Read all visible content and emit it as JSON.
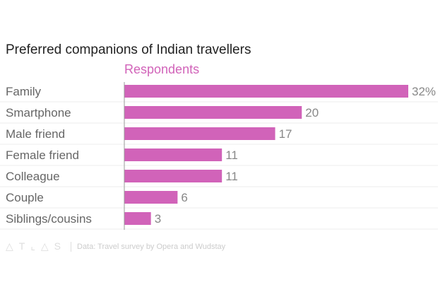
{
  "chart_data": {
    "type": "bar",
    "title": "Preferred companions of Indian travellers",
    "series_name": "Respondents",
    "categories": [
      "Family",
      "Smartphone",
      "Male friend",
      "Female friend",
      "Colleague",
      "Couple",
      "Siblings/cousins"
    ],
    "values": [
      32,
      20,
      17,
      11,
      11,
      6,
      3
    ],
    "value_labels": [
      "32%",
      "20",
      "17",
      "11",
      "11",
      "6",
      "3"
    ],
    "xlim": [
      0,
      32
    ],
    "bar_color": "#d163b9"
  },
  "footer": {
    "logo": "ATLAS",
    "source": "Data: Travel survey by Opera and Wudstay"
  }
}
